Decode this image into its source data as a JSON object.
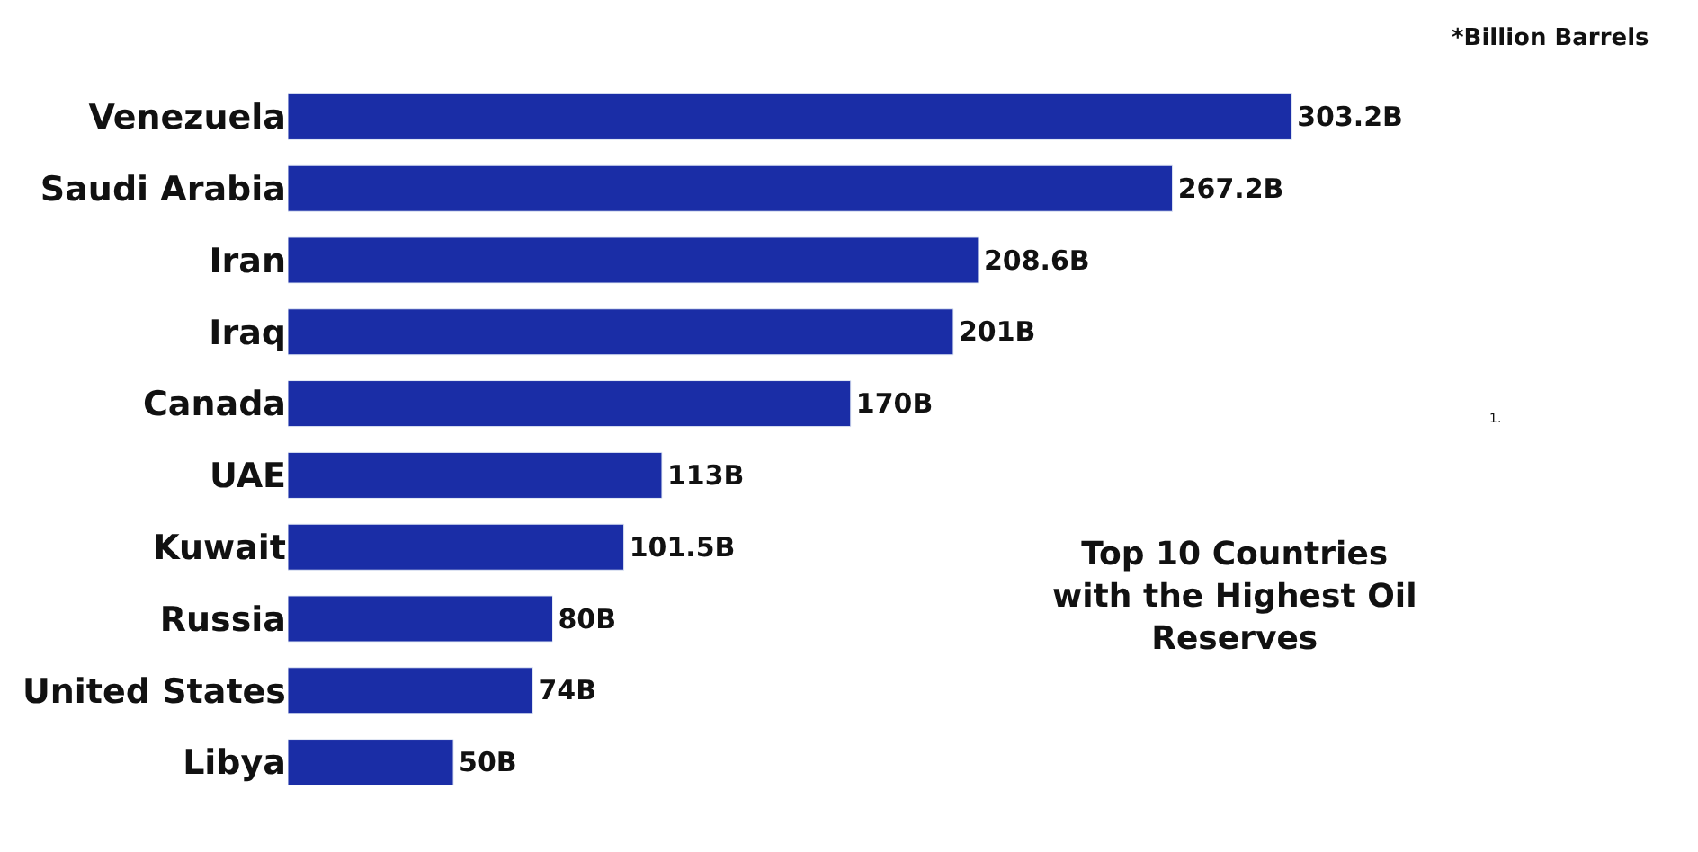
{
  "chart_data": {
    "type": "bar",
    "orientation": "horizontal",
    "title": "Top 10 Countries with the Highest Oil Reserves",
    "categories": [
      "Venezuela",
      "Saudi Arabia",
      "Iran",
      "Iraq",
      "Canada",
      "UAE",
      "Kuwait",
      "Russia",
      "United States",
      "Libya"
    ],
    "values": [
      303.2,
      267.2,
      208.6,
      201,
      170,
      113,
      101.5,
      80,
      74,
      50
    ],
    "value_labels": [
      "303.2B",
      "267.2B",
      "208.6B",
      "201B",
      "170B",
      "113B",
      "101.5B",
      "80B",
      "74B",
      "50B"
    ],
    "color": "#1a2da6",
    "annotations": [
      "*Billion Barrels",
      "1."
    ]
  }
}
